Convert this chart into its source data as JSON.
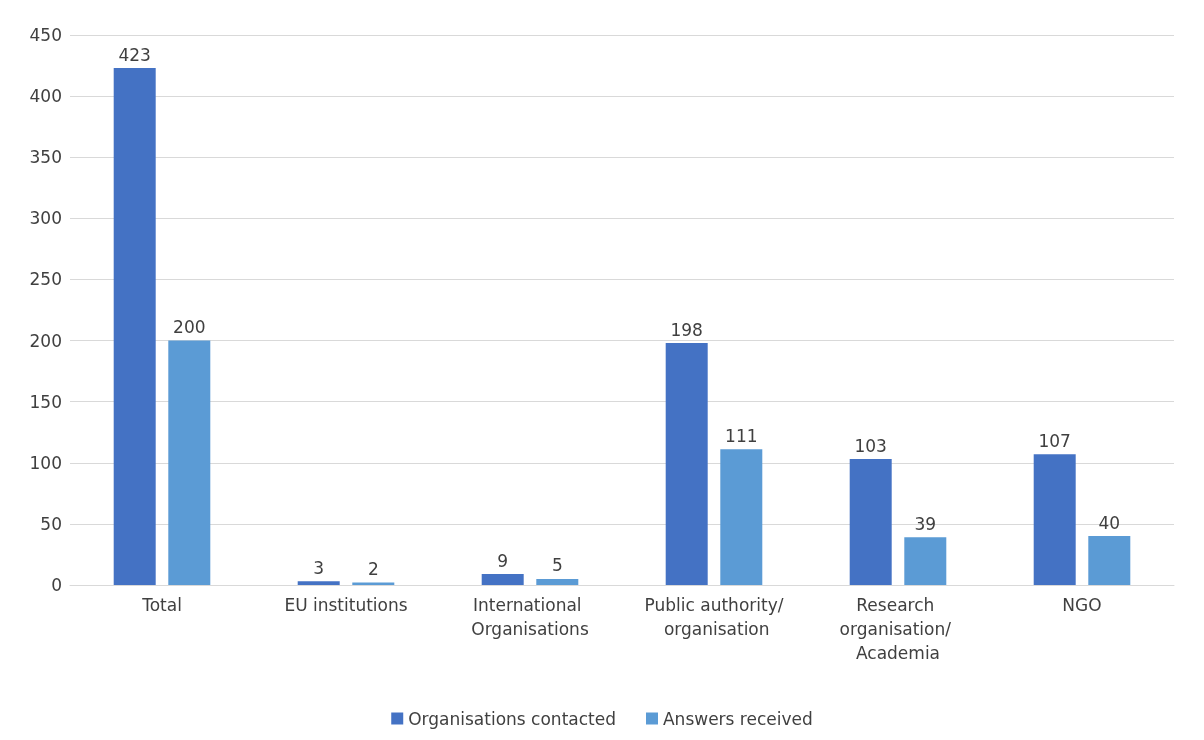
{
  "chart_data": {
    "type": "bar",
    "categories": [
      "Total",
      "EU institutions",
      "International Organisations",
      "Public authority/ organisation",
      "Research organisation/ Academia",
      "NGO"
    ],
    "series": [
      {
        "name": "Organisations contacted",
        "color": "#4472c4",
        "values": [
          423,
          3,
          9,
          198,
          103,
          107
        ]
      },
      {
        "name": "Answers received",
        "color": "#5b9bd5",
        "values": [
          200,
          2,
          5,
          111,
          39,
          40
        ]
      }
    ],
    "ylim": [
      0,
      450
    ],
    "yticks": [
      0,
      50,
      100,
      150,
      200,
      250,
      300,
      350,
      400,
      450
    ],
    "grid": "y",
    "legend": "bottom",
    "data_labels": true
  }
}
